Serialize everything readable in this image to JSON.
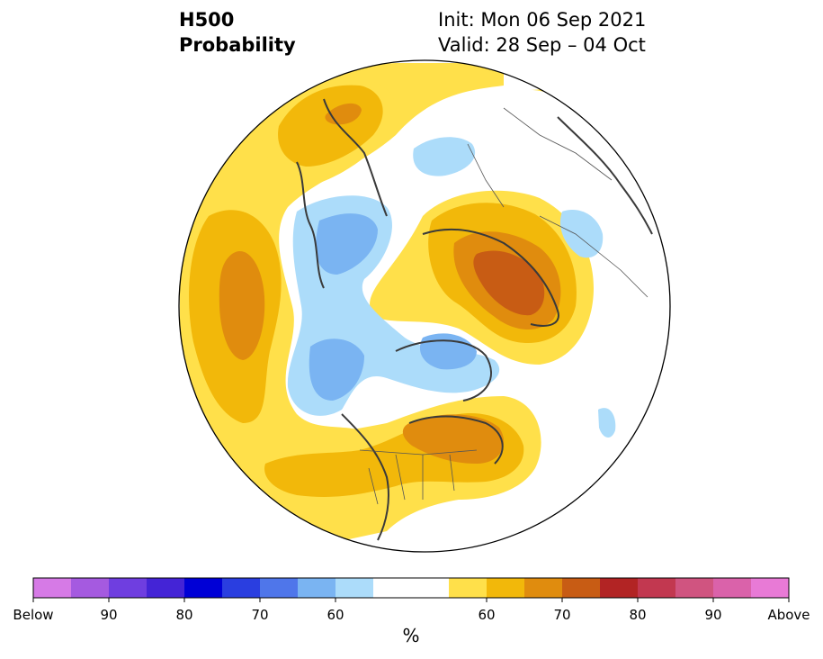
{
  "title": {
    "left_line1": "H500",
    "left_line2": "Probability",
    "right_line1": "Init: Mon 06 Sep 2021",
    "right_line2": "Valid: 28 Sep – 04 Oct"
  },
  "colorbar": {
    "unit": "%",
    "colors": [
      "#d67ae6",
      "#a55ae0",
      "#6f3ee0",
      "#4424d6",
      "#0000d6",
      "#2a3ee0",
      "#4f76ea",
      "#7ab4f2",
      "#acdcfa",
      "#ffffff",
      "#ffffff",
      "#ffe04a",
      "#f2b80a",
      "#e08c0e",
      "#c85c14",
      "#b22424",
      "#c23850",
      "#d05480",
      "#da62aa",
      "#e87ad6"
    ],
    "tick_labels": [
      "Below",
      "90",
      "80",
      "70",
      "60",
      "60",
      "70",
      "80",
      "90",
      "Above"
    ]
  }
}
